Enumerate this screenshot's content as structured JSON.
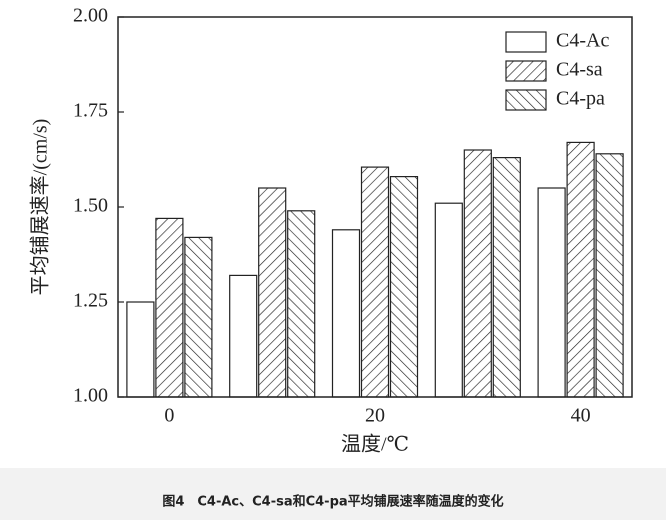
{
  "chart_data": {
    "type": "bar",
    "caption": "图4　C4-Ac、C4-sa和C4-pa平均铺展速率随温度的变化",
    "xlabel": "温度/℃",
    "ylabel": "平均铺展速率/(cm/s)",
    "categories": [
      "0",
      null,
      "20",
      null,
      "40"
    ],
    "series": [
      {
        "name": "C4-Ac",
        "color": "#ffffff",
        "hatch": "none",
        "values": [
          1.25,
          1.32,
          1.44,
          1.51,
          1.55
        ]
      },
      {
        "name": "C4-sa",
        "color": "#ffffff",
        "hatch": "/",
        "values": [
          1.47,
          1.55,
          1.605,
          1.65,
          1.67
        ]
      },
      {
        "name": "C4-pa",
        "color": "#ffffff",
        "hatch": "\\",
        "values": [
          1.42,
          1.49,
          1.58,
          1.63,
          1.64
        ]
      }
    ],
    "ylim": [
      1.0,
      2.0
    ],
    "yticks": [
      {
        "value": 1.0,
        "label": "1.00"
      },
      {
        "value": 1.25,
        "label": "1.25"
      },
      {
        "value": 1.5,
        "label": "1.50"
      },
      {
        "value": 1.75,
        "label": "1.75"
      },
      {
        "value": 2.0,
        "label": "2.00"
      }
    ],
    "legend": "upper right",
    "grid": false
  }
}
